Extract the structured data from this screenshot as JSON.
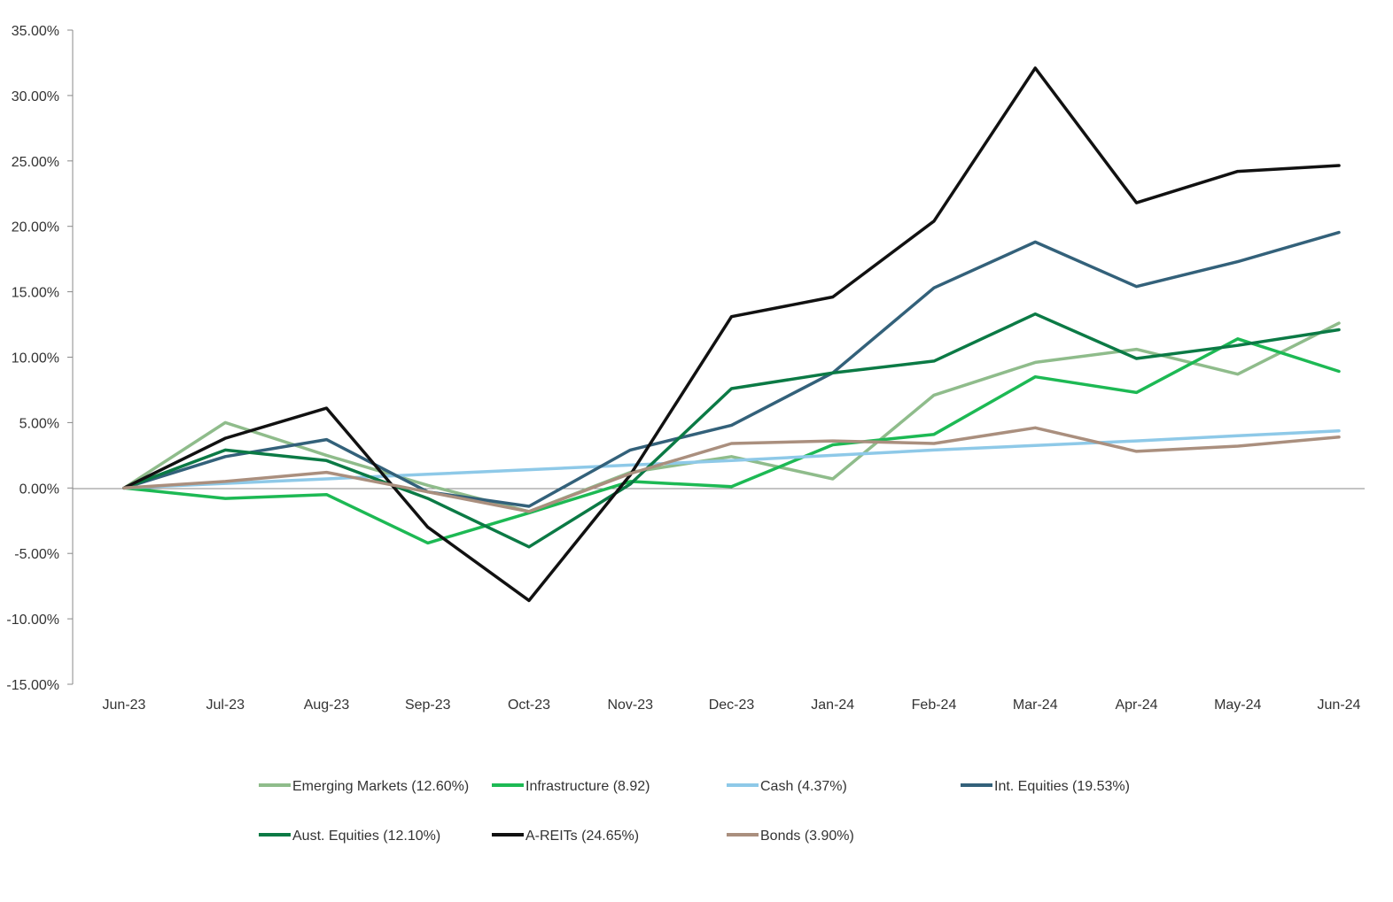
{
  "chart_data": {
    "type": "line",
    "title": "",
    "xlabel": "",
    "ylabel": "",
    "x": [
      "Jun-23",
      "Jul-23",
      "Aug-23",
      "Sep-23",
      "Oct-23",
      "Nov-23",
      "Dec-23",
      "Jan-24",
      "Feb-24",
      "Mar-24",
      "Apr-24",
      "May-24",
      "Jun-24"
    ],
    "y_ticks": [
      "35.00%",
      "30.00%",
      "25.00%",
      "20.00%",
      "15.00%",
      "10.00%",
      "5.00%",
      "0.00%",
      "-5.00%",
      "-10.00%",
      "-15.00%"
    ],
    "ylim": [
      -15,
      35
    ],
    "y_unit": "%",
    "grid": false,
    "legend_position": "bottom",
    "series": [
      {
        "name": "Emerging Markets (12.60%)",
        "color": "#8fbc8b",
        "values": [
          0,
          5.0,
          2.5,
          0.2,
          -1.8,
          1.2,
          2.4,
          0.7,
          7.1,
          9.6,
          10.6,
          8.7,
          12.6
        ]
      },
      {
        "name": "Infrastructure (8.92)",
        "color": "#1db954",
        "values": [
          0,
          -0.8,
          -0.5,
          -4.2,
          -1.9,
          0.5,
          0.1,
          3.3,
          4.1,
          8.5,
          7.3,
          11.4,
          8.92
        ]
      },
      {
        "name": "Cash (4.37%)",
        "color": "#8ec9e8",
        "values": [
          0,
          0.35,
          0.7,
          1.05,
          1.4,
          1.75,
          2.1,
          2.5,
          2.9,
          3.25,
          3.6,
          4.0,
          4.37
        ]
      },
      {
        "name": "Int. Equities (19.53%)",
        "color": "#33617a",
        "values": [
          0,
          2.4,
          3.7,
          -0.3,
          -1.4,
          2.9,
          4.8,
          8.8,
          15.3,
          18.8,
          15.4,
          17.3,
          19.53
        ]
      },
      {
        "name": "Aust. Equities (12.10%)",
        "color": "#0b7a45",
        "values": [
          0,
          2.9,
          2.1,
          -0.8,
          -4.5,
          0.3,
          7.6,
          8.8,
          9.7,
          13.3,
          9.9,
          10.9,
          12.1
        ]
      },
      {
        "name": "A-REITs (24.65%)",
        "color": "#111111",
        "values": [
          0,
          3.8,
          6.1,
          -3.0,
          -8.6,
          1.0,
          13.1,
          14.6,
          20.4,
          32.1,
          21.8,
          24.2,
          24.65
        ]
      },
      {
        "name": "Bonds (3.90%)",
        "color": "#aa8f7e",
        "values": [
          0,
          0.5,
          1.2,
          -0.3,
          -1.8,
          1.1,
          3.4,
          3.6,
          3.4,
          4.6,
          2.8,
          3.2,
          3.9
        ]
      }
    ]
  }
}
